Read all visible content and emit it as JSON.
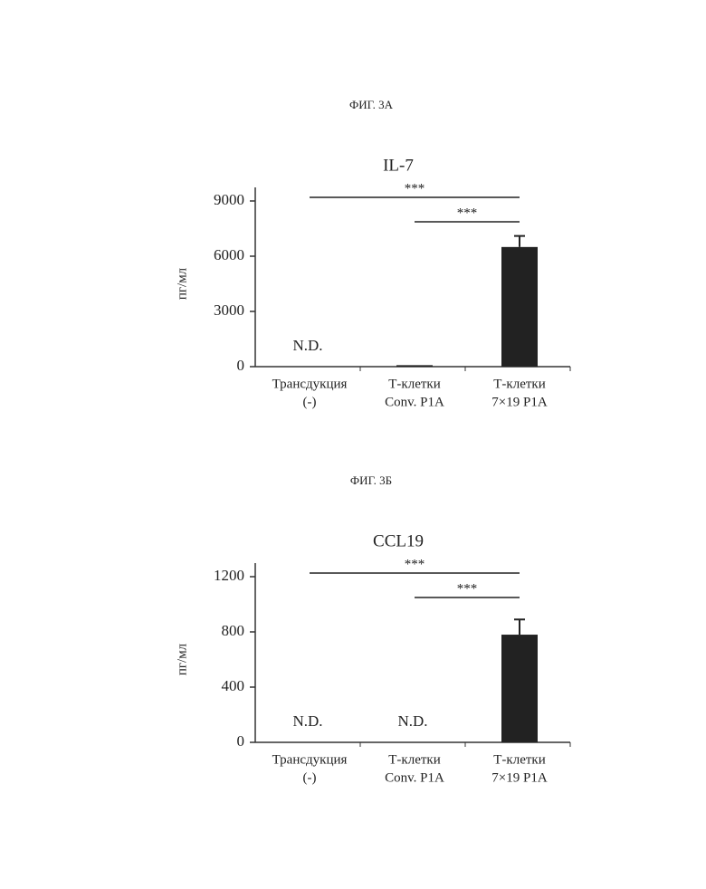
{
  "chart_data": [
    {
      "type": "bar",
      "figure_label": "ФИГ. 3А",
      "title": "IL-7",
      "y_label": "пг/мл",
      "categories": [
        [
          "Трансдукция",
          "(-)"
        ],
        [
          "Т-клетки",
          "Conv. P1A"
        ],
        [
          "Т-клетки",
          "7×19 P1A"
        ]
      ],
      "values": [
        null,
        80,
        6500
      ],
      "errors": [
        null,
        null,
        600
      ],
      "value_labels": [
        "N.D.",
        null,
        null
      ],
      "color": "#222222",
      "ylim": [
        0,
        9000
      ],
      "yticks": [
        0,
        3000,
        6000,
        9000
      ],
      "significance": [
        {
          "label": "***",
          "from": 0,
          "to": 2
        },
        {
          "label": "***",
          "from": 1,
          "to": 2
        }
      ]
    },
    {
      "type": "bar",
      "figure_label": "ФИГ. 3Б",
      "title": "CCL19",
      "y_label": "пг/мл",
      "categories": [
        [
          "Трансдукция",
          "(-)"
        ],
        [
          "Т-клетки",
          "Conv. P1A"
        ],
        [
          "Т-клетки",
          "7×19 P1A"
        ]
      ],
      "values": [
        null,
        null,
        780
      ],
      "errors": [
        null,
        null,
        110
      ],
      "value_labels": [
        "N.D.",
        "N.D.",
        null
      ],
      "color": "#222222",
      "ylim": [
        0,
        1200
      ],
      "yticks": [
        0,
        400,
        800,
        1200
      ],
      "significance": [
        {
          "label": "***",
          "from": 0,
          "to": 2
        },
        {
          "label": "***",
          "from": 1,
          "to": 2
        }
      ]
    }
  ]
}
